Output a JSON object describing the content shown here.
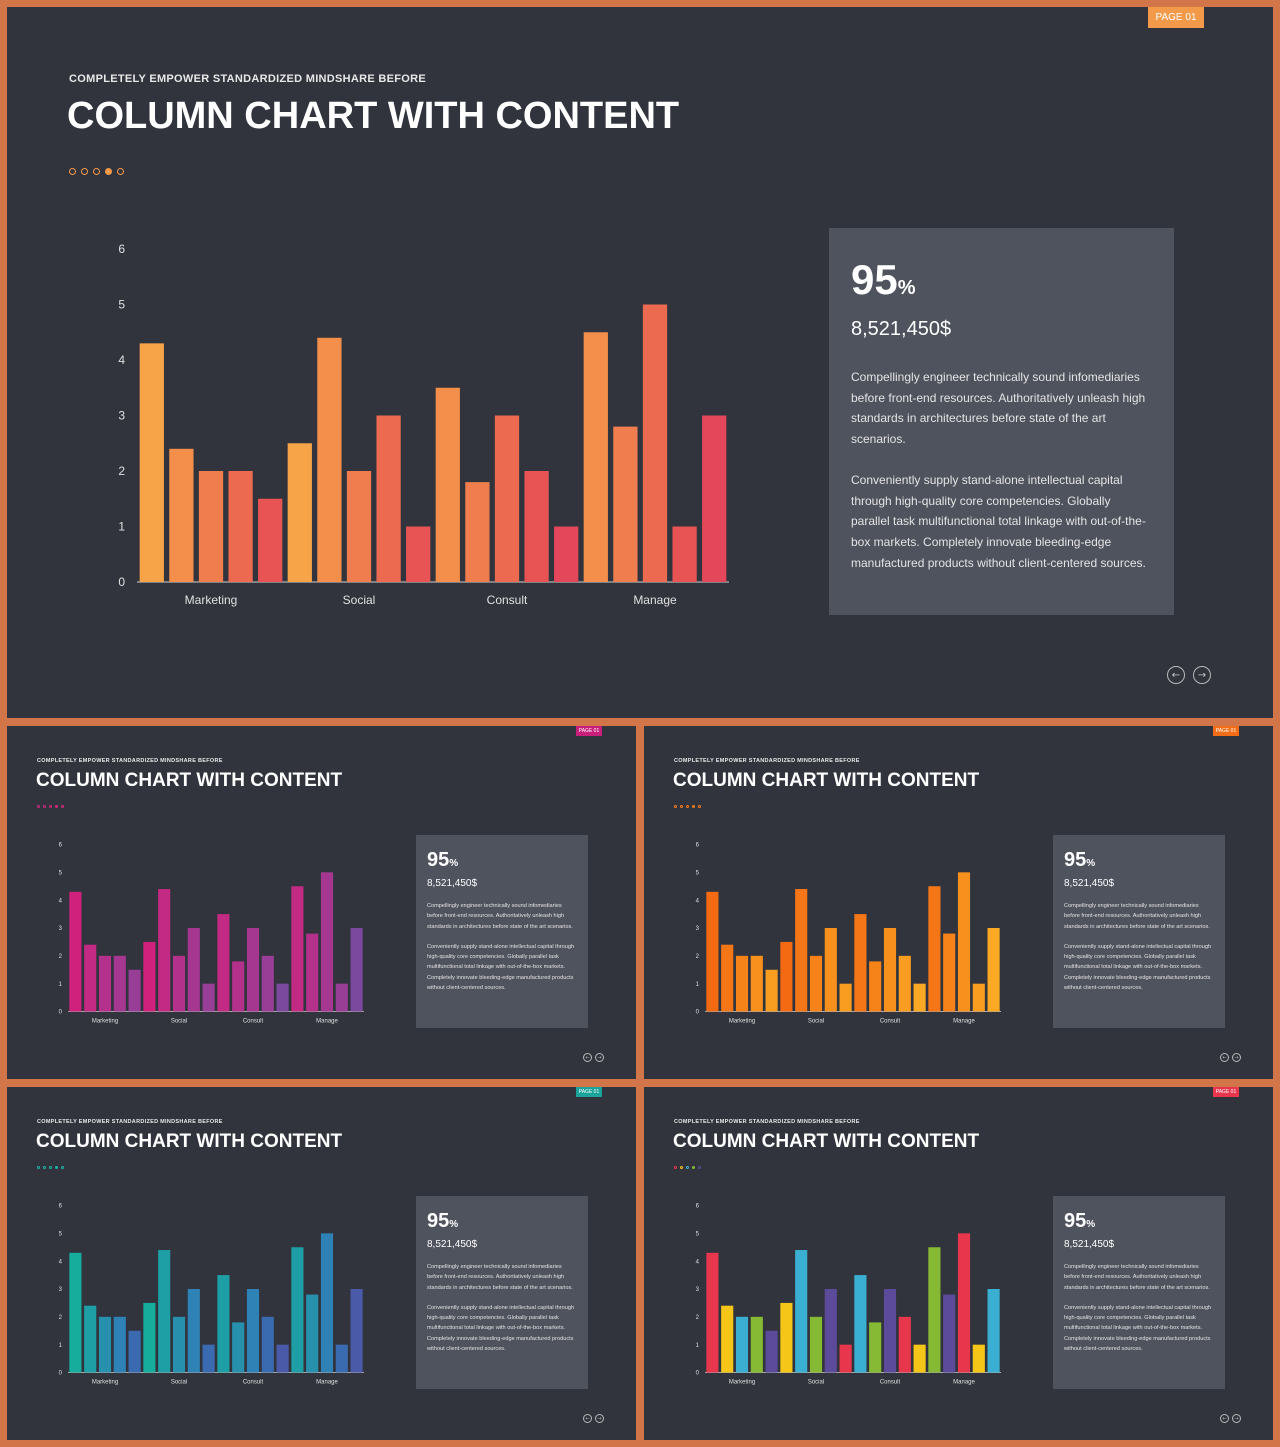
{
  "slides": {
    "main": {
      "page_badge": "PAGE 01",
      "kicker": "COMPLETELY  EMPOWER  STANDARDIZED  MINDSHARE  BEFORE",
      "title": "COLUMN CHART WITH CONTENT",
      "percent": "95",
      "percent_unit": "%",
      "amount": "8,521,450$",
      "paragraph1": "Compellingly engineer technically sound infomediaries before front-end resources. Authoritatively unleash high standards in architectures before state of the art scenarios.",
      "paragraph2": "Conveniently supply stand-alone intellectual capital through high-quality core competencies. Globally parallel task multifunctional total linkage with out-of-the-box markets. Completely innovate bleeding-edge manufactured products without client-centered sources.",
      "nav_prev": "←",
      "nav_next": "→"
    },
    "pink": {
      "page_badge": "PAGE 01",
      "kicker": "COMPLETELY  EMPOWER  STANDARDIZED  MINDSHARE  BEFORE",
      "title": "COLUMN CHART WITH CONTENT",
      "percent": "95",
      "percent_unit": "%",
      "amount": "8,521,450$",
      "paragraph1": "Compellingly engineer technically sound infomediaries before front-end resources. Authoritatively unleash high standards in architectures before state of the art scenarios.",
      "paragraph2": "Conveniently supply stand-alone intellectual capital through high-quality core competencies. Globally parallel task multifunctional total linkage with out-of-the-box markets. Completely innovate bleeding-edge manufactured products without client-centered sources.",
      "nav_prev": "←",
      "nav_next": "→"
    },
    "orange": {
      "page_badge": "PAGE 01",
      "kicker": "COMPLETELY  EMPOWER  STANDARDIZED  MINDSHARE  BEFORE",
      "title": "COLUMN CHART WITH CONTENT",
      "percent": "95",
      "percent_unit": "%",
      "amount": "8,521,450$",
      "paragraph1": "Compellingly engineer technically sound infomediaries before front-end resources. Authoritatively unleash high standards in architectures before state of the art scenarios.",
      "paragraph2": "Conveniently supply stand-alone intellectual capital through high-quality core competencies. Globally parallel task multifunctional total linkage with out-of-the-box markets. Completely innovate bleeding-edge manufactured products without client-centered sources.",
      "nav_prev": "←",
      "nav_next": "→"
    },
    "teal": {
      "page_badge": "PAGE 01",
      "kicker": "COMPLETELY  EMPOWER  STANDARDIZED  MINDSHARE  BEFORE",
      "title": "COLUMN CHART WITH CONTENT",
      "percent": "95",
      "percent_unit": "%",
      "amount": "8,521,450$",
      "paragraph1": "Compellingly engineer technically sound infomediaries before front-end resources. Authoritatively unleash high standards in architectures before state of the art scenarios.",
      "paragraph2": "Conveniently supply stand-alone intellectual capital through high-quality core competencies. Globally parallel task multifunctional total linkage with out-of-the-box markets. Completely innovate bleeding-edge manufactured products without client-centered sources.",
      "nav_prev": "←",
      "nav_next": "→"
    },
    "multi": {
      "page_badge": "PAGE 01",
      "kicker": "COMPLETELY  EMPOWER  STANDARDIZED  MINDSHARE  BEFORE",
      "title": "COLUMN CHART WITH CONTENT",
      "percent": "95",
      "percent_unit": "%",
      "amount": "8,521,450$",
      "paragraph1": "Compellingly engineer technically sound infomediaries before front-end resources. Authoritatively unleash high standards in architectures before state of the art scenarios.",
      "paragraph2": "Conveniently supply stand-alone intellectual capital through high-quality core competencies. Globally parallel task multifunctional total linkage with out-of-the-box markets. Completely innovate bleeding-edge manufactured products without client-centered sources.",
      "nav_prev": "←",
      "nav_next": "→"
    }
  },
  "themes": {
    "main": {
      "badge": "#f2994a",
      "accent": "#f2994a",
      "bars": [
        "#f6a447",
        "#f38f4a",
        "#ef7d4d",
        "#ec6a50",
        "#e85454",
        "#e4475a"
      ],
      "dots_filled_index": 3
    },
    "pink": {
      "badge": "#c8207a",
      "accent": "#d7267c",
      "bars": [
        "#d0227c",
        "#c22a83",
        "#b4318b",
        "#a63791",
        "#983e97",
        "#7b4a9f"
      ],
      "dots_filled_index": 3
    },
    "orange": {
      "badge": "#f36c17",
      "accent": "#f57c1f",
      "bars": [
        "#f46a12",
        "#f57616",
        "#f6831a",
        "#f7901d",
        "#f89d20",
        "#faa924"
      ],
      "dots_filled_index": 3
    },
    "teal": {
      "badge": "#1aa39a",
      "accent": "#1db3a3",
      "bars": [
        "#16ad9c",
        "#1e9ea5",
        "#2690ad",
        "#2e82b5",
        "#3a6bb0",
        "#4a5aa8"
      ],
      "dots_filled_index": 3
    },
    "multi": {
      "badge": "#e8374d",
      "accent": "#e8374d",
      "bars": [
        "#e8374d",
        "#f5c518",
        "#3aafd1",
        "#86b934",
        "#5c4a9a",
        "#4e4e9e"
      ],
      "dots_filled_index": 3
    }
  },
  "chart_data": [
    {
      "id": "main",
      "type": "bar",
      "categories": [
        "Marketing",
        "Social",
        "Consult",
        "Manage"
      ],
      "series": [
        {
          "values": [
            4.3,
            2.5,
            3.5,
            4.5
          ]
        },
        {
          "values": [
            2.4,
            4.4,
            1.8,
            2.8
          ]
        },
        {
          "values": [
            2.0,
            2.0,
            3.0,
            5.0
          ]
        },
        {
          "values": [
            2.0,
            3.0,
            2.0,
            1.0
          ]
        },
        {
          "values": [
            1.5,
            1.0,
            1.0,
            3.0
          ]
        }
      ],
      "y_ticks": [
        "0",
        "1",
        "2",
        "3",
        "4",
        "5",
        "6"
      ],
      "ylim": [
        0,
        6
      ],
      "grid": false
    },
    {
      "id": "pink",
      "type": "bar",
      "categories": [
        "Marketing",
        "Social",
        "Consult",
        "Manage"
      ],
      "series": [
        {
          "values": [
            4.3,
            2.5,
            3.5,
            4.5
          ]
        },
        {
          "values": [
            2.4,
            4.4,
            1.8,
            2.8
          ]
        },
        {
          "values": [
            2.0,
            2.0,
            3.0,
            5.0
          ]
        },
        {
          "values": [
            2.0,
            3.0,
            2.0,
            1.0
          ]
        },
        {
          "values": [
            1.5,
            1.0,
            1.0,
            3.0
          ]
        }
      ],
      "y_ticks": [
        "0",
        "1",
        "2",
        "3",
        "4",
        "5",
        "6"
      ],
      "ylim": [
        0,
        6
      ],
      "grid": false
    },
    {
      "id": "orange",
      "type": "bar",
      "categories": [
        "Marketing",
        "Social",
        "Consult",
        "Manage"
      ],
      "series": [
        {
          "values": [
            4.3,
            2.5,
            3.5,
            4.5
          ]
        },
        {
          "values": [
            2.4,
            4.4,
            1.8,
            2.8
          ]
        },
        {
          "values": [
            2.0,
            2.0,
            3.0,
            5.0
          ]
        },
        {
          "values": [
            2.0,
            3.0,
            2.0,
            1.0
          ]
        },
        {
          "values": [
            1.5,
            1.0,
            1.0,
            3.0
          ]
        }
      ],
      "y_ticks": [
        "0",
        "1",
        "2",
        "3",
        "4",
        "5",
        "6"
      ],
      "ylim": [
        0,
        6
      ],
      "grid": false
    },
    {
      "id": "teal",
      "type": "bar",
      "categories": [
        "Marketing",
        "Social",
        "Consult",
        "Manage"
      ],
      "series": [
        {
          "values": [
            4.3,
            2.5,
            3.5,
            4.5
          ]
        },
        {
          "values": [
            2.4,
            4.4,
            1.8,
            2.8
          ]
        },
        {
          "values": [
            2.0,
            2.0,
            3.0,
            5.0
          ]
        },
        {
          "values": [
            2.0,
            3.0,
            2.0,
            1.0
          ]
        },
        {
          "values": [
            1.5,
            1.0,
            1.0,
            3.0
          ]
        }
      ],
      "y_ticks": [
        "0",
        "1",
        "2",
        "3",
        "4",
        "5",
        "6"
      ],
      "ylim": [
        0,
        6
      ],
      "grid": false
    },
    {
      "id": "multi",
      "type": "bar",
      "categories": [
        "Marketing",
        "Social",
        "Consult",
        "Manage"
      ],
      "series": [
        {
          "values": [
            4.3,
            2.5,
            3.5,
            4.5
          ]
        },
        {
          "values": [
            2.4,
            4.4,
            1.8,
            2.8
          ]
        },
        {
          "values": [
            2.0,
            2.0,
            3.0,
            5.0
          ]
        },
        {
          "values": [
            2.0,
            3.0,
            2.0,
            1.0
          ]
        },
        {
          "values": [
            1.5,
            1.0,
            1.0,
            3.0
          ]
        }
      ],
      "y_ticks": [
        "0",
        "1",
        "2",
        "3",
        "4",
        "5",
        "6"
      ],
      "ylim": [
        0,
        6
      ],
      "grid": false
    }
  ]
}
